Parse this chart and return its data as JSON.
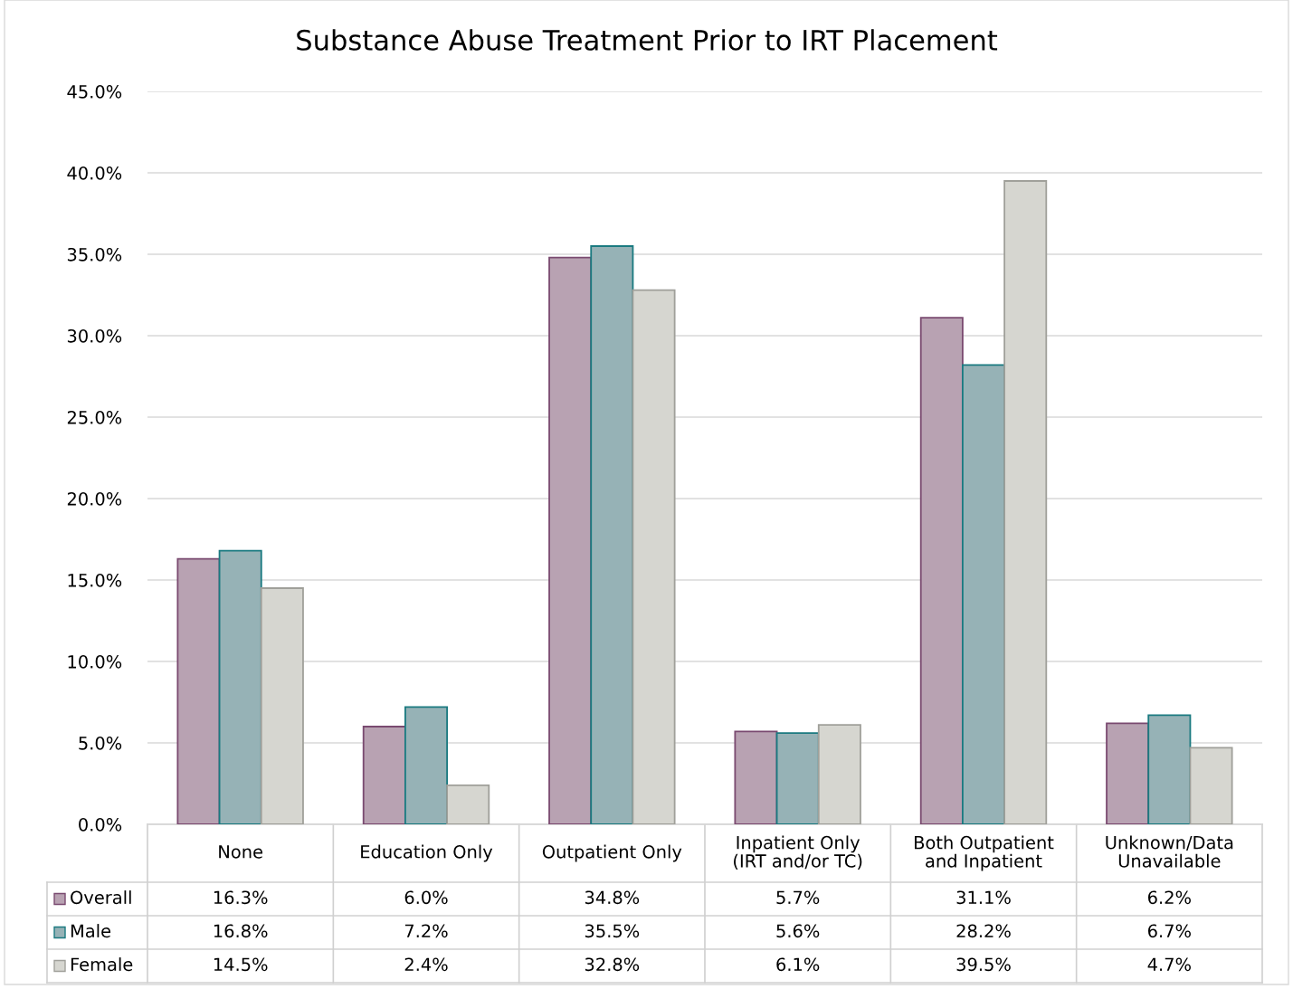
{
  "chart_data": {
    "type": "bar",
    "title": "Substance Abuse Treatment Prior to IRT Placement",
    "categories": [
      "None",
      "Education Only",
      "Outpatient Only",
      "Inpatient Only\n(IRT and/or TC)",
      "Both Outpatient\nand Inpatient",
      "Unknown/Data\nUnavailable"
    ],
    "series": [
      {
        "name": "Overall",
        "color": "#b8a2b2",
        "values": [
          16.3,
          6.0,
          34.8,
          5.7,
          31.1,
          6.2
        ],
        "value_labels": [
          "16.3%",
          "6.0%",
          "34.8%",
          "5.7%",
          "31.1%",
          "6.2%"
        ]
      },
      {
        "name": "Male",
        "color": "#96b2b6",
        "values": [
          16.8,
          7.2,
          35.5,
          5.6,
          28.2,
          6.7
        ],
        "value_labels": [
          "16.8%",
          "7.2%",
          "35.5%",
          "5.6%",
          "28.2%",
          "6.7%"
        ]
      },
      {
        "name": "Female",
        "color": "#d6d6d0",
        "values": [
          14.5,
          2.4,
          32.8,
          6.1,
          39.5,
          4.7
        ],
        "value_labels": [
          "14.5%",
          "2.4%",
          "32.8%",
          "6.1%",
          "39.5%",
          "4.7%"
        ]
      }
    ],
    "ylim": [
      0,
      45
    ],
    "yticks": [
      {
        "value": 0,
        "label": "0.0%"
      },
      {
        "value": 5,
        "label": "5.0%"
      },
      {
        "value": 10,
        "label": "10.0%"
      },
      {
        "value": 15,
        "label": "15.0%"
      },
      {
        "value": 20,
        "label": "20.0%"
      },
      {
        "value": 25,
        "label": "25.0%"
      },
      {
        "value": 30,
        "label": "30.0%"
      },
      {
        "value": 35,
        "label": "35.0%"
      },
      {
        "value": 40,
        "label": "40.0%"
      },
      {
        "value": 45,
        "label": "45.0%"
      }
    ],
    "grid": "y",
    "legend": "bottom left"
  }
}
